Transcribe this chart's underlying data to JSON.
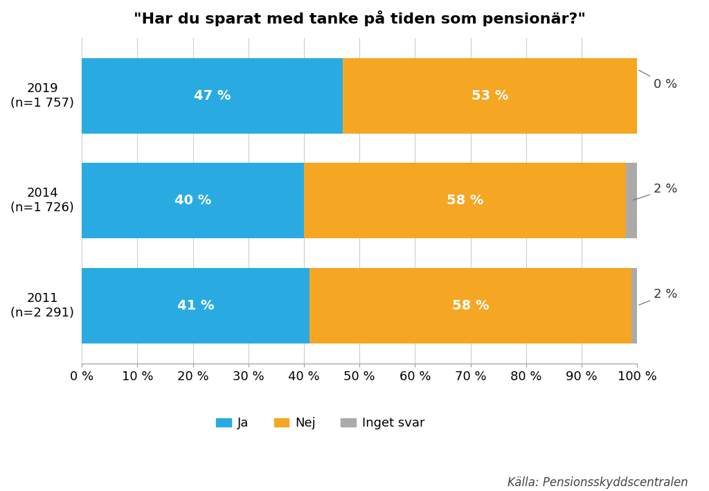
{
  "title": "\"Har du sparat med tanke på tiden som pensionär?\"",
  "years": [
    "2019\n(n=1 757)",
    "2014\n(n=1 726)",
    "2011\n(n=2 291)"
  ],
  "ja": [
    47,
    40,
    41
  ],
  "nej": [
    53,
    58,
    58
  ],
  "inget_svar": [
    0,
    2,
    2
  ],
  "color_ja": "#29ABE2",
  "color_nej": "#F5A623",
  "color_inget": "#AAAAAA",
  "source": "Källa: Pensionsskyddscentralen",
  "bar_label_color": "#FFFFFF",
  "xticks": [
    0,
    10,
    20,
    30,
    40,
    50,
    60,
    70,
    80,
    90,
    100
  ],
  "xlim": [
    0,
    100
  ],
  "legend_labels": [
    "Ja",
    "Nej",
    "Inget svar"
  ],
  "title_fontsize": 16,
  "label_fontsize": 14,
  "tick_fontsize": 13,
  "source_fontsize": 12,
  "legend_fontsize": 13,
  "bar_height": 0.72,
  "annotation_fontsize": 13
}
